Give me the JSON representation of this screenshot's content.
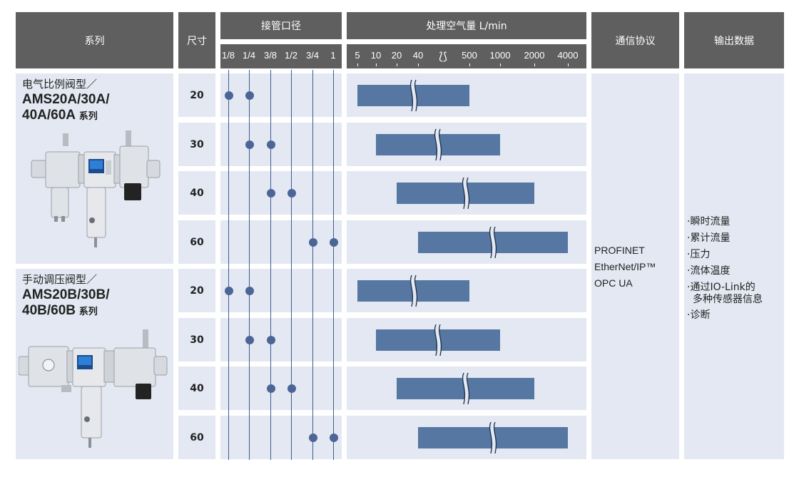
{
  "headers": {
    "series": "系列",
    "size": "尺寸",
    "port": "接管口径",
    "flow": "处理空气量 L/min",
    "protocol": "通信协议",
    "output": "输出数据"
  },
  "port_ticks": [
    "1/8",
    "1/4",
    "3/8",
    "1/2",
    "3/4",
    "1"
  ],
  "flow_ticks": [
    "5",
    "10",
    "20",
    "40",
    "500",
    "1000",
    "2000",
    "4000"
  ],
  "flow_break_symbol": "⟅⟆",
  "groups": [
    {
      "title": "电气比例阀型／",
      "line1": "AMS20A/30A/",
      "line2": "40A/60A",
      "suffix": "系列",
      "rows": [
        {
          "size": "20",
          "ports": [
            "1/8",
            "1/4"
          ],
          "flow_min": "5",
          "flow_max": "500"
        },
        {
          "size": "30",
          "ports": [
            "1/4",
            "3/8"
          ],
          "flow_min": "10",
          "flow_max": "1000"
        },
        {
          "size": "40",
          "ports": [
            "3/8",
            "1/2"
          ],
          "flow_min": "20",
          "flow_max": "2000"
        },
        {
          "size": "60",
          "ports": [
            "3/4",
            "1"
          ],
          "flow_min": "40",
          "flow_max": "4000"
        }
      ]
    },
    {
      "title": "手动调压阀型／",
      "line1": "AMS20B/30B/",
      "line2": "40B/60B",
      "suffix": "系列",
      "rows": [
        {
          "size": "20",
          "ports": [
            "1/8",
            "1/4"
          ],
          "flow_min": "5",
          "flow_max": "500"
        },
        {
          "size": "30",
          "ports": [
            "1/4",
            "3/8"
          ],
          "flow_min": "10",
          "flow_max": "1000"
        },
        {
          "size": "40",
          "ports": [
            "3/8",
            "1/2"
          ],
          "flow_min": "20",
          "flow_max": "2000"
        },
        {
          "size": "60",
          "ports": [
            "3/4",
            "1"
          ],
          "flow_min": "40",
          "flow_max": "4000"
        }
      ]
    }
  ],
  "protocols": [
    "PROFINET",
    "EtherNet/IP™",
    "OPC UA"
  ],
  "outputs": [
    {
      "bullet": "·",
      "text": "瞬时流量"
    },
    {
      "bullet": "·",
      "text": "累计流量"
    },
    {
      "bullet": "·",
      "text": "压力"
    },
    {
      "bullet": "·",
      "text": "流体温度"
    },
    {
      "bullet": "·",
      "text": "通过IO-Link的",
      "cont": "多种传感器信息"
    },
    {
      "bullet": "·",
      "text": "诊断"
    }
  ],
  "colors": {
    "header_bg": "#5f5f5f",
    "cell_bg": "#e3e8f2",
    "bar": "#5577a2",
    "dot": "#4c6597",
    "line": "#3e5c8e"
  }
}
